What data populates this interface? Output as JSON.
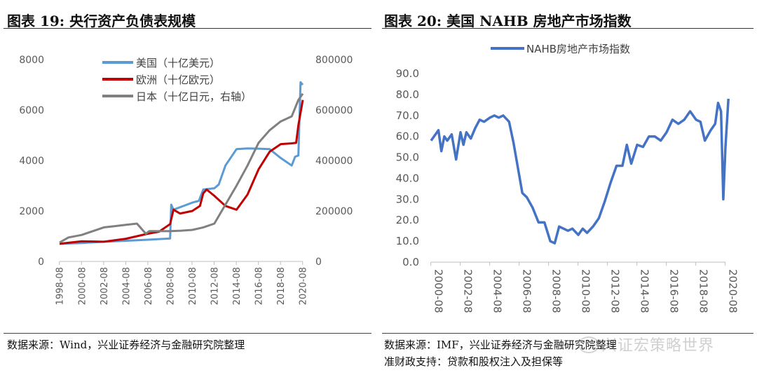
{
  "left": {
    "title": "图表 19:  央行资产负债表规模",
    "source": "数据来源：Wind，兴业证券经济与金融研究院整理",
    "chart_data": {
      "type": "line",
      "x_ticks": [
        "1998-08",
        "2000-08",
        "2002-08",
        "2004-08",
        "2006-08",
        "2008-08",
        "2010-08",
        "2012-08",
        "2014-08",
        "2016-08",
        "2018-08",
        "2020-08"
      ],
      "yleft": {
        "ticks": [
          "0",
          "2000",
          "4000",
          "6000",
          "8000"
        ],
        "range": [
          0,
          8000
        ]
      },
      "yright": {
        "ticks": [
          "0",
          "200000",
          "400000",
          "600000",
          "800000"
        ],
        "range": [
          0,
          800000
        ]
      },
      "grid": false,
      "legend_position": "top",
      "series": [
        {
          "name": "美国（十亿美元）",
          "color": "#5B9BD5",
          "axis": "left",
          "x": [
            1998.6,
            2000.6,
            2002.6,
            2004.6,
            2006.6,
            2008.6,
            2008.7,
            2008.9,
            2009.5,
            2010.6,
            2011.2,
            2011.6,
            2012.6,
            2013.0,
            2013.6,
            2014.6,
            2015.6,
            2016.6,
            2017.6,
            2018.6,
            2019.6,
            2019.9,
            2020.2,
            2020.4,
            2020.6
          ],
          "y": [
            700,
            730,
            780,
            820,
            860,
            910,
            2250,
            2050,
            2150,
            2330,
            2400,
            2850,
            2900,
            3050,
            3800,
            4450,
            4480,
            4470,
            4450,
            4100,
            3800,
            4150,
            4200,
            7100,
            7000
          ]
        },
        {
          "name": "欧洲（十亿欧元）",
          "color": "#C00000",
          "axis": "left",
          "x": [
            1998.6,
            2000.6,
            2002.6,
            2004.6,
            2006.6,
            2007.6,
            2008.6,
            2008.9,
            2009.5,
            2010.6,
            2011.3,
            2011.6,
            2011.9,
            2012.6,
            2013.6,
            2014.6,
            2015.6,
            2016.6,
            2017.6,
            2018.6,
            2019.6,
            2020.0,
            2020.2,
            2020.6
          ],
          "y": [
            700,
            800,
            780,
            900,
            1100,
            1180,
            1480,
            2050,
            1900,
            2000,
            2200,
            2700,
            2850,
            2600,
            2200,
            2050,
            2650,
            3650,
            4350,
            4650,
            4680,
            4700,
            5400,
            6400
          ]
        },
        {
          "name": "日本（十亿日元，右轴）",
          "color": "#808080",
          "axis": "right",
          "x": [
            1998.6,
            1999.4,
            2000.6,
            2001.6,
            2002.6,
            2003.6,
            2004.6,
            2005.6,
            2006.4,
            2006.7,
            2007.6,
            2008.6,
            2009.6,
            2010.6,
            2011.6,
            2012.6,
            2013.6,
            2014.6,
            2015.6,
            2016.6,
            2017.6,
            2018.6,
            2019.6,
            2020.2,
            2020.6
          ],
          "y": [
            75000,
            95000,
            105000,
            120000,
            135000,
            140000,
            145000,
            150000,
            110000,
            120000,
            120000,
            120000,
            122000,
            125000,
            135000,
            150000,
            225000,
            300000,
            380000,
            470000,
            520000,
            555000,
            575000,
            640000,
            665000
          ]
        }
      ]
    }
  },
  "right": {
    "title": "图表 20:  美国 NAHB 房地产市场指数",
    "source_line1": "数据来源：IMF，兴业证券经济与金融研究院整理",
    "source_line2": "准财政支持：贷款和股权注入及担保等",
    "chart_data": {
      "type": "line",
      "x_ticks": [
        "2000-08",
        "2002-08",
        "2004-08",
        "2006-08",
        "2008-08",
        "2010-08",
        "2012-08",
        "2014-08",
        "2016-08",
        "2018-08",
        "2020-08"
      ],
      "y_ticks": [
        "0.0",
        "10.0",
        "20.0",
        "30.0",
        "40.0",
        "50.0",
        "60.0",
        "70.0",
        "80.0",
        "90.0"
      ],
      "ylim": [
        0,
        90
      ],
      "grid": false,
      "legend_position": "top",
      "series": [
        {
          "name": "NAHB房地产市场指数",
          "color": "#4472C4",
          "x": [
            2000.6,
            2000.9,
            2001.1,
            2001.3,
            2001.5,
            2001.7,
            2002.0,
            2002.3,
            2002.6,
            2002.8,
            2003.0,
            2003.3,
            2003.6,
            2003.9,
            2004.2,
            2004.6,
            2004.9,
            2005.2,
            2005.5,
            2005.9,
            2006.2,
            2006.5,
            2006.8,
            2007.1,
            2007.5,
            2007.9,
            2008.3,
            2008.7,
            2009.0,
            2009.3,
            2009.6,
            2009.9,
            2010.2,
            2010.6,
            2010.9,
            2011.2,
            2011.6,
            2012.0,
            2012.4,
            2012.8,
            2013.2,
            2013.6,
            2013.9,
            2014.2,
            2014.6,
            2015.0,
            2015.4,
            2015.8,
            2016.2,
            2016.6,
            2017.0,
            2017.4,
            2017.8,
            2018.2,
            2018.6,
            2018.9,
            2019.2,
            2019.6,
            2019.9,
            2020.1,
            2020.3,
            2020.45,
            2020.6,
            2020.8
          ],
          "y": [
            58,
            61,
            63,
            53,
            60,
            58,
            61,
            49,
            62,
            56,
            62,
            59,
            64,
            68,
            67,
            69,
            70,
            69,
            70,
            67,
            57,
            45,
            33,
            31,
            26,
            19,
            19,
            10,
            9,
            17,
            16,
            15,
            16,
            13,
            16,
            14,
            17,
            21,
            29,
            38,
            46,
            46,
            56,
            47,
            56,
            55,
            60,
            60,
            58,
            62,
            68,
            66,
            68,
            72,
            68,
            67,
            58,
            63,
            66,
            76,
            72,
            30,
            55,
            78
          ]
        }
      ]
    }
  },
  "watermark": "兴证宏策略世界"
}
